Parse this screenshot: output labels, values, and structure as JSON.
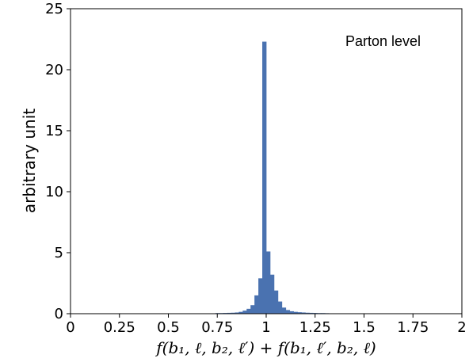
{
  "chart_data": {
    "type": "bar",
    "annotation": "Parton level",
    "xlabel": "f(b₁, ℓ, b₂, ℓ′) + f(b₁, ℓ′, b₂, ℓ)",
    "ylabel": "arbitrary unit",
    "xlim": [
      0,
      2
    ],
    "ylim": [
      0,
      25
    ],
    "xticks": [
      "0",
      "0.25",
      "0.5",
      "0.75",
      "1",
      "1.25",
      "1.5",
      "1.75",
      "2"
    ],
    "yticks": [
      "0",
      "5",
      "10",
      "15",
      "20",
      "25"
    ],
    "bin_width": 0.02,
    "bar_color": "#4a72b0",
    "bins": [
      {
        "x": 0.74,
        "y": 0.05
      },
      {
        "x": 0.76,
        "y": 0.05
      },
      {
        "x": 0.78,
        "y": 0.06
      },
      {
        "x": 0.8,
        "y": 0.07
      },
      {
        "x": 0.82,
        "y": 0.08
      },
      {
        "x": 0.84,
        "y": 0.1
      },
      {
        "x": 0.86,
        "y": 0.15
      },
      {
        "x": 0.88,
        "y": 0.25
      },
      {
        "x": 0.9,
        "y": 0.4
      },
      {
        "x": 0.92,
        "y": 0.7
      },
      {
        "x": 0.94,
        "y": 1.5
      },
      {
        "x": 0.96,
        "y": 2.9
      },
      {
        "x": 0.98,
        "y": 22.3
      },
      {
        "x": 1.0,
        "y": 5.1
      },
      {
        "x": 1.02,
        "y": 3.2
      },
      {
        "x": 1.04,
        "y": 1.9
      },
      {
        "x": 1.06,
        "y": 1.0
      },
      {
        "x": 1.08,
        "y": 0.5
      },
      {
        "x": 1.1,
        "y": 0.3
      },
      {
        "x": 1.12,
        "y": 0.2
      },
      {
        "x": 1.14,
        "y": 0.15
      },
      {
        "x": 1.16,
        "y": 0.12
      },
      {
        "x": 1.18,
        "y": 0.1
      },
      {
        "x": 1.2,
        "y": 0.08
      },
      {
        "x": 1.22,
        "y": 0.07
      },
      {
        "x": 1.24,
        "y": 0.06
      },
      {
        "x": 1.26,
        "y": 0.05
      },
      {
        "x": 1.28,
        "y": 0.05
      },
      {
        "x": 1.3,
        "y": 0.04
      }
    ]
  }
}
